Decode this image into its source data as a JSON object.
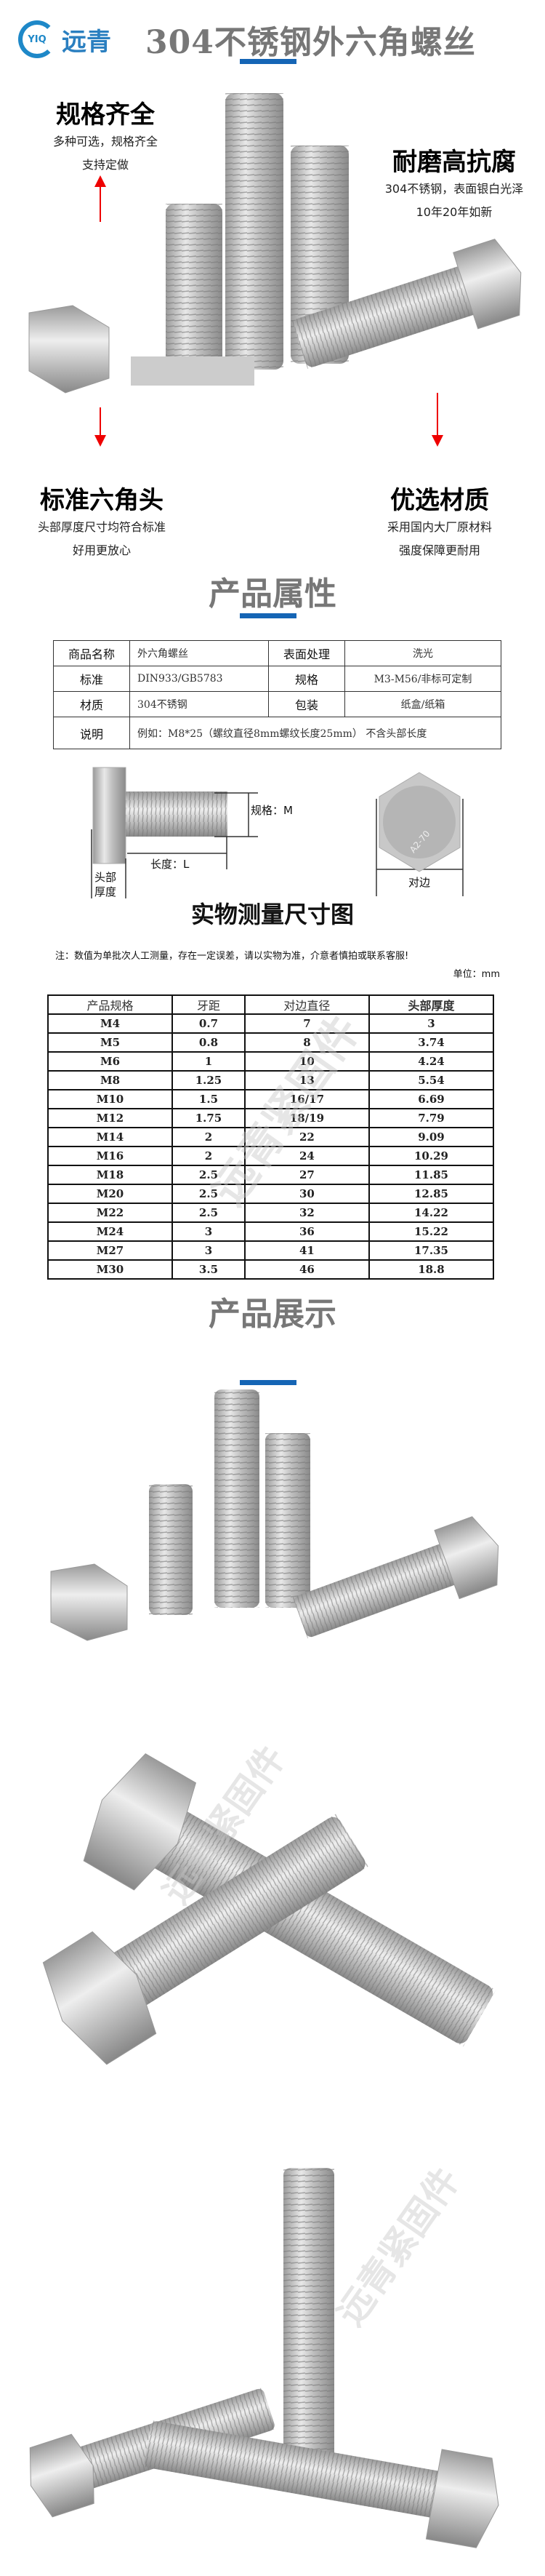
{
  "header": {
    "logo_mark": "YIQ",
    "logo_text": "远青",
    "title": "304不锈钢外六角螺丝"
  },
  "features": [
    {
      "title": "规格齐全",
      "lines": [
        "多种可选，规格齐全",
        "支持定做"
      ]
    },
    {
      "title": "耐磨高抗腐",
      "lines": [
        "304不锈钢，表面银白光泽",
        "10年20年如新"
      ]
    },
    {
      "title": "标准六角头",
      "lines": [
        "头部厚度尺寸均符合标准",
        "好用更放心"
      ]
    },
    {
      "title": "优选材质",
      "lines": [
        "采用国内大厂原材料",
        "强度保障更耐用"
      ]
    }
  ],
  "attributes": {
    "title": "产品属性",
    "rows": [
      [
        "商品名称",
        "外六角螺丝",
        "表面处理",
        "洗光"
      ],
      [
        "标准",
        "DIN933/GB5783",
        "规格",
        "M3-M56/非标可定制"
      ],
      [
        "材质",
        "304不锈钢",
        "包装",
        "纸盒/纸箱"
      ]
    ],
    "note_label": "说明",
    "note_value": "例如：M8*25（螺纹直径8mm螺纹长度25mm） 不含头部长度"
  },
  "diagram": {
    "spec_label": "规格：M",
    "length_label": "长度：L",
    "head_label": "头部厚度",
    "across_label": "对边",
    "head_mark": "A2-70",
    "title": "实物测量尺寸图"
  },
  "measure": {
    "note": "注：数值为单批次人工测量，存在一定误差，请以实物为准，介意者慎拍或联系客服!",
    "unit": "单位：mm",
    "headers": [
      "产品规格",
      "牙距",
      "对边直径",
      "头部厚度"
    ],
    "rows": [
      [
        "M4",
        "0.7",
        "7",
        "3"
      ],
      [
        "M5",
        "0.8",
        "8",
        "3.74"
      ],
      [
        "M6",
        "1",
        "10",
        "4.24"
      ],
      [
        "M8",
        "1.25",
        "13",
        "5.54"
      ],
      [
        "M10",
        "1.5",
        "16/17",
        "6.69"
      ],
      [
        "M12",
        "1.75",
        "18/19",
        "7.79"
      ],
      [
        "M14",
        "2",
        "22",
        "9.09"
      ],
      [
        "M16",
        "2",
        "24",
        "10.29"
      ],
      [
        "M18",
        "2.5",
        "27",
        "11.85"
      ],
      [
        "M20",
        "2.5",
        "30",
        "12.85"
      ],
      [
        "M22",
        "2.5",
        "32",
        "14.22"
      ],
      [
        "M24",
        "3",
        "36",
        "15.22"
      ],
      [
        "M27",
        "3",
        "41",
        "17.35"
      ],
      [
        "M30",
        "3.5",
        "46",
        "18.8"
      ]
    ]
  },
  "showcase": {
    "title": "产品展示",
    "watermark": "远青紧固件"
  },
  "colors": {
    "accent": "#1565b5",
    "arrow": "#e00000",
    "title_gray": "#777777"
  }
}
